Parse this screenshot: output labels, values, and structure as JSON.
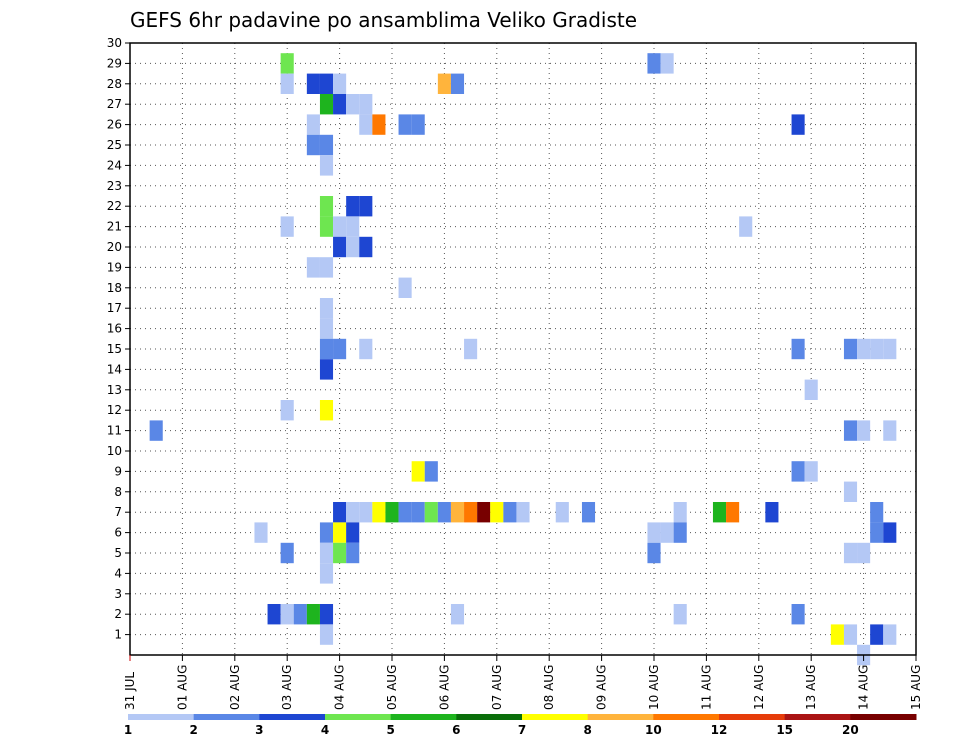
{
  "chart_data": {
    "type": "heatmap",
    "title": "GEFS 6hr padavine po ansamblima Veliko Gradiste",
    "x_ticks": [
      "31 JUL",
      "01 AUG",
      "02 AUG",
      "03 AUG",
      "04 AUG",
      "05 AUG",
      "06 AUG",
      "07 AUG",
      "08 AUG",
      "09 AUG",
      "10 AUG",
      "11 AUG",
      "12 AUG",
      "13 AUG",
      "14 AUG",
      "15 AUG"
    ],
    "y_ticks": [
      1,
      2,
      3,
      4,
      5,
      6,
      7,
      8,
      9,
      10,
      11,
      12,
      13,
      14,
      15,
      16,
      17,
      18,
      19,
      20,
      21,
      22,
      23,
      24,
      25,
      26,
      27,
      28,
      29,
      30
    ],
    "xlim": [
      0,
      15
    ],
    "ylim": [
      0,
      30
    ],
    "grid": true,
    "colorbar": {
      "labels": [
        "1",
        "2",
        "3",
        "4",
        "5",
        "6",
        "7",
        "8",
        "10",
        "12",
        "15",
        "20"
      ],
      "colors": [
        "#b4c8f5",
        "#5a87e6",
        "#1e46d2",
        "#6ee650",
        "#1eb41e",
        "#0a6e0a",
        "#ffff00",
        "#ffb43c",
        "#ff7800",
        "#e63c0a",
        "#aa1414",
        "#780000"
      ]
    },
    "cells": [
      [
        0.5,
        11,
        "#5a87e6"
      ],
      [
        2.5,
        6,
        "#b4c8f5"
      ],
      [
        3.0,
        29,
        "#6ee650"
      ],
      [
        3.0,
        28,
        "#b4c8f5"
      ],
      [
        3.0,
        21,
        "#b4c8f5"
      ],
      [
        3.0,
        12,
        "#b4c8f5"
      ],
      [
        3.0,
        5,
        "#5a87e6"
      ],
      [
        2.75,
        2,
        "#1e46d2"
      ],
      [
        3.0,
        2,
        "#b4c8f5"
      ],
      [
        3.25,
        2,
        "#5a87e6"
      ],
      [
        3.5,
        2,
        "#1eb41e"
      ],
      [
        3.75,
        2,
        "#1e46d2"
      ],
      [
        3.5,
        28,
        "#1e46d2"
      ],
      [
        3.75,
        28,
        "#1e46d2"
      ],
      [
        4.0,
        28,
        "#b4c8f5"
      ],
      [
        3.75,
        27,
        "#1eb41e"
      ],
      [
        4.0,
        27,
        "#1e46d2"
      ],
      [
        4.25,
        27,
        "#b4c8f5"
      ],
      [
        4.5,
        27,
        "#b4c8f5"
      ],
      [
        3.5,
        26,
        "#b4c8f5"
      ],
      [
        4.5,
        26,
        "#b4c8f5"
      ],
      [
        4.75,
        26,
        "#ff7800"
      ],
      [
        5.25,
        26,
        "#5a87e6"
      ],
      [
        5.5,
        26,
        "#5a87e6"
      ],
      [
        3.5,
        25,
        "#5a87e6"
      ],
      [
        3.75,
        25,
        "#5a87e6"
      ],
      [
        3.75,
        24,
        "#b4c8f5"
      ],
      [
        3.75,
        22,
        "#6ee650"
      ],
      [
        4.25,
        22,
        "#1e46d2"
      ],
      [
        4.5,
        22,
        "#1e46d2"
      ],
      [
        3.75,
        21,
        "#6ee650"
      ],
      [
        4.0,
        21,
        "#b4c8f5"
      ],
      [
        4.25,
        21,
        "#b4c8f5"
      ],
      [
        4.0,
        20,
        "#1e46d2"
      ],
      [
        4.25,
        20,
        "#b4c8f5"
      ],
      [
        4.5,
        20,
        "#1e46d2"
      ],
      [
        3.5,
        19,
        "#b4c8f5"
      ],
      [
        3.75,
        19,
        "#b4c8f5"
      ],
      [
        5.25,
        18,
        "#b4c8f5"
      ],
      [
        3.75,
        17,
        "#b4c8f5"
      ],
      [
        3.75,
        16,
        "#b4c8f5"
      ],
      [
        3.75,
        15,
        "#5a87e6"
      ],
      [
        4.0,
        15,
        "#5a87e6"
      ],
      [
        4.5,
        15,
        "#b4c8f5"
      ],
      [
        6.5,
        15,
        "#b4c8f5"
      ],
      [
        3.75,
        14,
        "#1e46d2"
      ],
      [
        3.75,
        12,
        "#ffff00"
      ],
      [
        5.5,
        9,
        "#ffff00"
      ],
      [
        5.75,
        9,
        "#5a87e6"
      ],
      [
        4.0,
        7,
        "#1e46d2"
      ],
      [
        4.25,
        7,
        "#b4c8f5"
      ],
      [
        4.5,
        7,
        "#b4c8f5"
      ],
      [
        4.75,
        7,
        "#ffff00"
      ],
      [
        5.0,
        7,
        "#1eb41e"
      ],
      [
        5.25,
        7,
        "#5a87e6"
      ],
      [
        5.5,
        7,
        "#5a87e6"
      ],
      [
        5.75,
        7,
        "#6ee650"
      ],
      [
        6.0,
        7,
        "#5a87e6"
      ],
      [
        6.25,
        7,
        "#ffb43c"
      ],
      [
        6.5,
        7,
        "#ff7800"
      ],
      [
        6.75,
        7,
        "#780000"
      ],
      [
        7.0,
        7,
        "#ffff00"
      ],
      [
        7.25,
        7,
        "#5a87e6"
      ],
      [
        7.5,
        7,
        "#b4c8f5"
      ],
      [
        8.25,
        7,
        "#b4c8f5"
      ],
      [
        8.75,
        7,
        "#5a87e6"
      ],
      [
        10.5,
        7,
        "#b4c8f5"
      ],
      [
        11.25,
        7,
        "#1eb41e"
      ],
      [
        11.5,
        7,
        "#ff7800"
      ],
      [
        12.25,
        7,
        "#1e46d2"
      ],
      [
        3.75,
        6,
        "#5a87e6"
      ],
      [
        4.0,
        6,
        "#ffff00"
      ],
      [
        4.25,
        6,
        "#1e46d2"
      ],
      [
        3.75,
        5,
        "#b4c8f5"
      ],
      [
        4.0,
        5,
        "#6ee650"
      ],
      [
        4.25,
        5,
        "#5a87e6"
      ],
      [
        3.75,
        4,
        "#b4c8f5"
      ],
      [
        6.25,
        2,
        "#b4c8f5"
      ],
      [
        3.75,
        1,
        "#b4c8f5"
      ],
      [
        10.0,
        29,
        "#5a87e6"
      ],
      [
        10.25,
        29,
        "#b4c8f5"
      ],
      [
        6.0,
        28,
        "#ffb43c"
      ],
      [
        6.25,
        28,
        "#5a87e6"
      ],
      [
        12.75,
        26,
        "#1e46d2"
      ],
      [
        11.75,
        21,
        "#b4c8f5"
      ],
      [
        12.75,
        15,
        "#5a87e6"
      ],
      [
        13.75,
        15,
        "#5a87e6"
      ],
      [
        14.0,
        15,
        "#b4c8f5"
      ],
      [
        14.25,
        15,
        "#b4c8f5"
      ],
      [
        14.5,
        15,
        "#b4c8f5"
      ],
      [
        13.0,
        13,
        "#b4c8f5"
      ],
      [
        13.75,
        11,
        "#5a87e6"
      ],
      [
        14.0,
        11,
        "#b4c8f5"
      ],
      [
        14.5,
        11,
        "#b4c8f5"
      ],
      [
        12.75,
        9,
        "#5a87e6"
      ],
      [
        13.0,
        9,
        "#b4c8f5"
      ],
      [
        13.75,
        8,
        "#b4c8f5"
      ],
      [
        14.25,
        7,
        "#5a87e6"
      ],
      [
        10.0,
        6,
        "#b4c8f5"
      ],
      [
        10.25,
        6,
        "#b4c8f5"
      ],
      [
        10.5,
        6,
        "#5a87e6"
      ],
      [
        14.25,
        6,
        "#5a87e6"
      ],
      [
        14.5,
        6,
        "#1e46d2"
      ],
      [
        10.0,
        5,
        "#5a87e6"
      ],
      [
        13.75,
        5,
        "#b4c8f5"
      ],
      [
        14.0,
        5,
        "#b4c8f5"
      ],
      [
        10.5,
        2,
        "#b4c8f5"
      ],
      [
        12.75,
        2,
        "#5a87e6"
      ],
      [
        13.5,
        1,
        "#ffff00"
      ],
      [
        13.75,
        1,
        "#b4c8f5"
      ],
      [
        14.25,
        1,
        "#1e46d2"
      ],
      [
        14.5,
        1,
        "#b4c8f5"
      ],
      [
        14.0,
        0,
        "#b4c8f5"
      ]
    ]
  }
}
